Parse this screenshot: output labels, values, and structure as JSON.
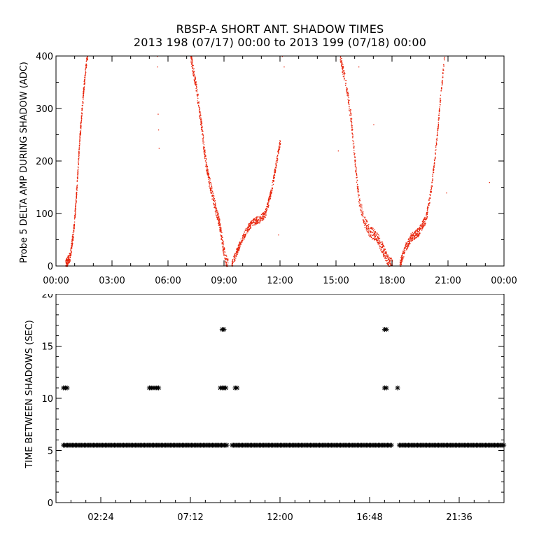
{
  "title": {
    "line1": "RBSP-A SHORT ANT. SHADOW TIMES",
    "line2": "2013 198 (07/17) 00:00 to 2013 199 (07/18) 00:00"
  },
  "colors": {
    "top_points": "#e8250c",
    "bottom_points": "#000000",
    "axes": "#000000"
  },
  "chart_data": [
    {
      "type": "scatter",
      "name": "delta-amp",
      "ylabel": "Probe 5 DELTA AMP DURING SHADOW (ADC)",
      "xlabel": "",
      "xlim": [
        0,
        24
      ],
      "ylim": [
        0,
        400
      ],
      "x_unit": "hours",
      "xticks": [
        0,
        3,
        6,
        9,
        12,
        15,
        18,
        21,
        24
      ],
      "xtick_labels": [
        "00:00",
        "03:00",
        "06:00",
        "09:00",
        "12:00",
        "15:00",
        "18:00",
        "21:00",
        "00:00"
      ],
      "yticks": [
        0,
        100,
        200,
        300,
        400
      ],
      "ytick_labels": [
        "0",
        "100",
        "200",
        "300",
        "400"
      ],
      "series": [
        {
          "name": "Probe 5 delta amp",
          "color": "#e8250c",
          "segments": [
            {
              "x": [
                0.5,
                0.75,
                0.95,
                1.1,
                1.25,
                1.4,
                1.55,
                1.7
              ],
              "y": [
                3,
                20,
                75,
                150,
                240,
                310,
                370,
                410
              ],
              "spread": 18
            },
            {
              "x": [
                7.2,
                7.5,
                7.8,
                8.0,
                8.2,
                8.4,
                8.6,
                8.75,
                8.9,
                9.05,
                9.2
              ],
              "y": [
                400,
                340,
                260,
                200,
                160,
                130,
                100,
                80,
                45,
                15,
                3
              ],
              "spread": 22
            },
            {
              "x": [
                9.4,
                9.7,
                10.0,
                10.3,
                10.6,
                10.9,
                11.2,
                11.5,
                11.8,
                12.0
              ],
              "y": [
                3,
                30,
                55,
                75,
                85,
                90,
                100,
                140,
                200,
                240
              ],
              "spread": 14
            },
            {
              "x": [
                15.2,
                15.5,
                15.8,
                16.0,
                16.2,
                16.5,
                16.8,
                17.1,
                17.4,
                17.7,
                18.0
              ],
              "y": [
                400,
                350,
                280,
                200,
                130,
                85,
                65,
                60,
                40,
                15,
                3
              ],
              "spread": 22
            },
            {
              "x": [
                18.4,
                18.7,
                19.0,
                19.4,
                19.8,
                20.1,
                20.4,
                20.6,
                20.8
              ],
              "y": [
                3,
                35,
                55,
                65,
                90,
                150,
                250,
                330,
                400
              ],
              "spread": 16
            }
          ],
          "outliers": {
            "x": [
              5.4,
              5.42,
              5.45,
              5.47,
              5.5,
              11.9,
              12.1,
              12.2,
              15.1,
              16.2,
              17.0,
              20.9,
              23.2
            ],
            "y": [
              400,
              380,
              290,
              260,
              225,
              60,
              400,
              380,
              220,
              380,
              270,
              140,
              160
            ]
          }
        }
      ]
    },
    {
      "type": "scatter",
      "name": "time-between-shadows",
      "ylabel": "TIME BETWEEN SHADOWS (SEC)",
      "xlabel": "",
      "xlim": [
        0.0,
        24.0
      ],
      "ylim": [
        0,
        20
      ],
      "x_unit": "hours",
      "xticks": [
        2.4,
        7.2,
        12.0,
        16.8,
        21.6
      ],
      "xtick_labels": [
        "02:24",
        "07:12",
        "12:00",
        "16:48",
        "21:36"
      ],
      "yticks": [
        0,
        5,
        10,
        15,
        20
      ],
      "ytick_labels": [
        "0",
        "5",
        "10",
        "15",
        "20"
      ],
      "series": [
        {
          "name": "Time between shadows",
          "marker": "asterisk",
          "color": "#000000",
          "baseline": {
            "y": 5.5,
            "x_start": 0.4,
            "x_end": 24.0,
            "step": 0.07,
            "gaps": [
              [
                9.2,
                9.4
              ],
              [
                18.0,
                18.35
              ]
            ]
          },
          "points": {
            "x": [
              0.4,
              0.5,
              0.6,
              5.0,
              5.1,
              5.2,
              5.3,
              5.4,
              5.5,
              8.8,
              8.9,
              9.0,
              9.1,
              8.9,
              9.0,
              9.6,
              9.7,
              17.6,
              17.7,
              17.6,
              17.7,
              18.3
            ],
            "y": [
              11,
              11,
              11,
              11,
              11,
              11,
              11,
              11,
              11,
              11,
              11,
              11,
              11,
              16.6,
              16.6,
              11,
              11,
              11,
              11,
              16.6,
              16.6,
              11
            ]
          }
        }
      ]
    }
  ]
}
